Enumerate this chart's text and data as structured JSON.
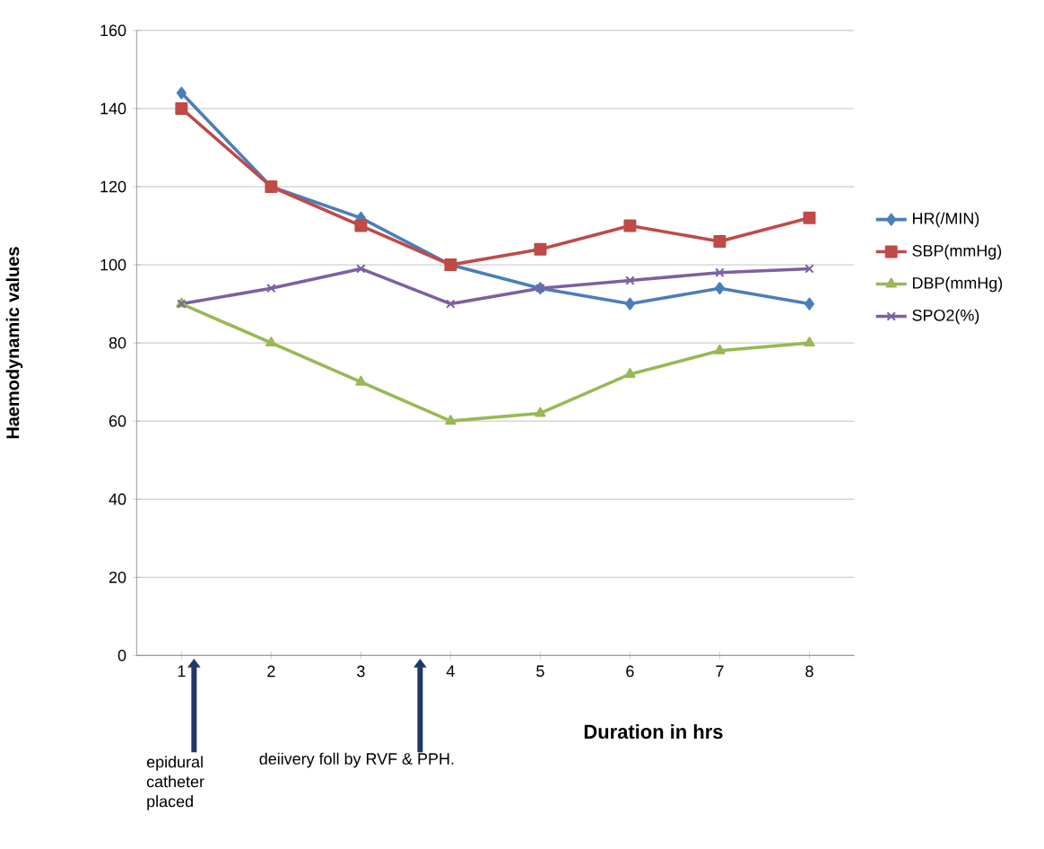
{
  "chart_data": {
    "type": "line",
    "ylabel": "Haemodynamic values",
    "xlabel": "Duration in hrs",
    "x": [
      1,
      2,
      3,
      4,
      5,
      6,
      7,
      8
    ],
    "xlim": [
      0.5,
      8.5
    ],
    "xticks": [
      1,
      2,
      3,
      4,
      5,
      6,
      7,
      8
    ],
    "ylim": [
      0,
      160
    ],
    "yticks": [
      0,
      20,
      40,
      60,
      80,
      100,
      120,
      140,
      160
    ],
    "grid": "y",
    "legend": "right",
    "series": [
      {
        "name": "HR(/MIN)",
        "color": "#4a7ebb",
        "marker": "diamond",
        "values": [
          144,
          120,
          112,
          100,
          94,
          90,
          94,
          90
        ]
      },
      {
        "name": "SBP(mmHg)",
        "color": "#be4b48",
        "marker": "square",
        "values": [
          140,
          120,
          110,
          100,
          104,
          110,
          106,
          112
        ]
      },
      {
        "name": "DBP(mmHg)",
        "color": "#98b954",
        "marker": "triangle",
        "values": [
          90,
          80,
          70,
          60,
          62,
          72,
          78,
          80
        ]
      },
      {
        "name": "SPO2(%)",
        "color": "#7d60a0",
        "marker": "cross",
        "values": [
          90,
          94,
          99,
          90,
          94,
          96,
          98,
          99
        ]
      }
    ],
    "annotations": [
      "epidural catheter placed",
      "deiivery foll by RVF & PPH."
    ]
  }
}
